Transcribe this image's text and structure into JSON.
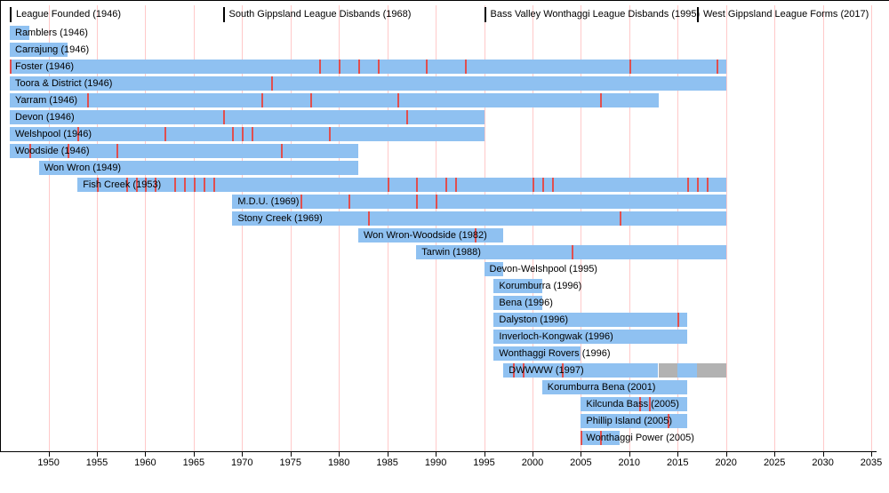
{
  "chart_data": {
    "type": "timeline",
    "title": "League club membership timeline",
    "layout_hints": {
      "grid": true,
      "gridline_interval_years": 5,
      "bars_horizontal": true,
      "axis_position": "bottom"
    },
    "colors": {
      "active": "#8fc1f1",
      "inactive": "#b2b2b2",
      "premiership_tick": "#e04f4f",
      "gridline": "#ffc9c9",
      "milestone_marker": "#000000",
      "axis": "#000000",
      "background": "#ffffff"
    },
    "axis": {
      "start_year": 1946,
      "end_year": 2035,
      "tick_years": [
        1950,
        1955,
        1960,
        1965,
        1970,
        1975,
        1980,
        1985,
        1990,
        1995,
        2000,
        2005,
        2010,
        2015,
        2020,
        2025,
        2030,
        2035
      ]
    },
    "milestones": [
      {
        "label": "League Founded (1946)",
        "year": 1946
      },
      {
        "label": "South Gippsland League Disbands (1968)",
        "year": 1968
      },
      {
        "label": "Bass Valley Wonthaggi League Disbands (1995)",
        "year": 1995
      },
      {
        "label": "West Gippsland League Forms (2017)",
        "year": 2017
      }
    ],
    "teams": [
      {
        "label": "Ramblers (1946)",
        "segments": [
          {
            "from": 1946,
            "to": 1948,
            "state": "active"
          }
        ],
        "premiership_years": []
      },
      {
        "label": "Carrajung (1946)",
        "segments": [
          {
            "from": 1946,
            "to": 1952,
            "state": "active"
          }
        ],
        "premiership_years": []
      },
      {
        "label": "Foster (1946)",
        "segments": [
          {
            "from": 1946,
            "to": 2020,
            "state": "active"
          }
        ],
        "premiership_years": [
          1946,
          1978,
          1980,
          1982,
          1984,
          1989,
          1993,
          2010,
          2019
        ]
      },
      {
        "label": "Toora & District (1946)",
        "segments": [
          {
            "from": 1946,
            "to": 2020,
            "state": "active"
          }
        ],
        "premiership_years": [
          1973
        ]
      },
      {
        "label": "Yarram (1946)",
        "segments": [
          {
            "from": 1946,
            "to": 2013,
            "state": "active"
          }
        ],
        "premiership_years": [
          1954,
          1972,
          1977,
          1986,
          2007
        ]
      },
      {
        "label": "Devon (1946)",
        "segments": [
          {
            "from": 1946,
            "to": 1995,
            "state": "active"
          }
        ],
        "premiership_years": [
          1968,
          1987
        ]
      },
      {
        "label": "Welshpool (1946)",
        "segments": [
          {
            "from": 1946,
            "to": 1995,
            "state": "active"
          }
        ],
        "premiership_years": [
          1953,
          1962,
          1969,
          1970,
          1971,
          1979
        ]
      },
      {
        "label": "Woodside (1946)",
        "segments": [
          {
            "from": 1946,
            "to": 1982,
            "state": "active"
          }
        ],
        "premiership_years": [
          1948,
          1952,
          1957,
          1974
        ]
      },
      {
        "label": "Won Wron (1949)",
        "segments": [
          {
            "from": 1949,
            "to": 1982,
            "state": "active"
          }
        ],
        "premiership_years": []
      },
      {
        "label": "Fish Creek (1953)",
        "segments": [
          {
            "from": 1953,
            "to": 2020,
            "state": "active"
          }
        ],
        "premiership_years": [
          1955,
          1958,
          1959,
          1960,
          1961,
          1963,
          1964,
          1965,
          1966,
          1967,
          1985,
          1988,
          1991,
          1992,
          2000,
          2001,
          2002,
          2016,
          2017,
          2018
        ]
      },
      {
        "label": "M.D.U. (1969)",
        "segments": [
          {
            "from": 1969,
            "to": 2020,
            "state": "active"
          }
        ],
        "premiership_years": [
          1976,
          1981,
          1988,
          1990
        ]
      },
      {
        "label": "Stony Creek (1969)",
        "segments": [
          {
            "from": 1969,
            "to": 2020,
            "state": "active"
          }
        ],
        "premiership_years": [
          1983,
          2009
        ]
      },
      {
        "label": "Won Wron-Woodside (1982)",
        "segments": [
          {
            "from": 1982,
            "to": 1997,
            "state": "active"
          }
        ],
        "premiership_years": [
          1994
        ]
      },
      {
        "label": "Tarwin (1988)",
        "segments": [
          {
            "from": 1988,
            "to": 2020,
            "state": "active"
          }
        ],
        "premiership_years": [
          2004
        ]
      },
      {
        "label": "Devon-Welshpool (1995)",
        "segments": [
          {
            "from": 1995,
            "to": 1997,
            "state": "active"
          }
        ],
        "premiership_years": []
      },
      {
        "label": "Korumburra (1996)",
        "segments": [
          {
            "from": 1996,
            "to": 2001,
            "state": "active"
          }
        ],
        "premiership_years": []
      },
      {
        "label": "Bena (1996)",
        "segments": [
          {
            "from": 1996,
            "to": 2001,
            "state": "active"
          }
        ],
        "premiership_years": []
      },
      {
        "label": "Dalyston (1996)",
        "segments": [
          {
            "from": 1996,
            "to": 2016,
            "state": "active"
          }
        ],
        "premiership_years": [
          2015
        ]
      },
      {
        "label": "Inverloch-Kongwak (1996)",
        "segments": [
          {
            "from": 1996,
            "to": 2016,
            "state": "active"
          }
        ],
        "premiership_years": []
      },
      {
        "label": "Wonthaggi Rovers (1996)",
        "segments": [
          {
            "from": 1996,
            "to": 2005,
            "state": "active"
          }
        ],
        "premiership_years": []
      },
      {
        "label": "DWWWW (1997)",
        "segments": [
          {
            "from": 1997,
            "to": 2013,
            "state": "active"
          },
          {
            "from": 2013,
            "to": 2015,
            "state": "inactive"
          },
          {
            "from": 2015,
            "to": 2017,
            "state": "active"
          },
          {
            "from": 2017,
            "to": 2020,
            "state": "inactive"
          }
        ],
        "premiership_years": [
          1998,
          1999,
          2003
        ]
      },
      {
        "label": "Korumburra Bena (2001)",
        "segments": [
          {
            "from": 2001,
            "to": 2016,
            "state": "active"
          }
        ],
        "premiership_years": []
      },
      {
        "label": "Kilcunda Bass (2005)",
        "segments": [
          {
            "from": 2005,
            "to": 2016,
            "state": "active"
          }
        ],
        "premiership_years": [
          2011,
          2012
        ]
      },
      {
        "label": "Phillip Island (2005)",
        "segments": [
          {
            "from": 2005,
            "to": 2016,
            "state": "active"
          }
        ],
        "premiership_years": [
          2014
        ]
      },
      {
        "label": "Wonthaggi Power (2005)",
        "segments": [
          {
            "from": 2005,
            "to": 2009,
            "state": "active"
          }
        ],
        "premiership_years": [
          2005,
          2007
        ]
      }
    ]
  }
}
